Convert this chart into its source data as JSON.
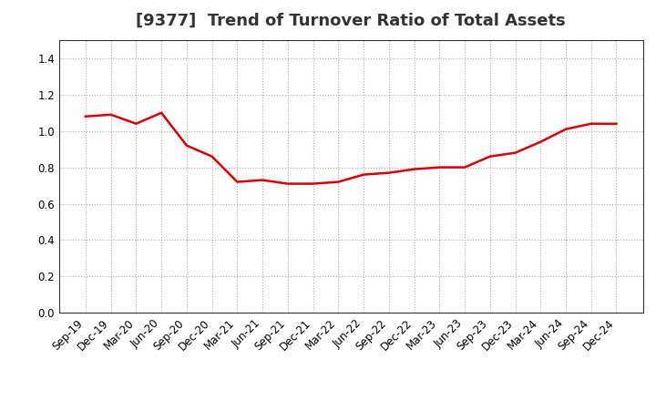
{
  "title": "[9377]  Trend of Turnover Ratio of Total Assets",
  "x_labels": [
    "Sep-19",
    "Dec-19",
    "Mar-20",
    "Jun-20",
    "Sep-20",
    "Dec-20",
    "Mar-21",
    "Jun-21",
    "Sep-21",
    "Dec-21",
    "Mar-22",
    "Jun-22",
    "Sep-22",
    "Dec-22",
    "Mar-23",
    "Jun-23",
    "Sep-23",
    "Dec-23",
    "Mar-24",
    "Jun-24",
    "Sep-24",
    "Dec-24"
  ],
  "y_values": [
    1.08,
    1.09,
    1.04,
    1.1,
    0.92,
    0.86,
    0.72,
    0.73,
    0.71,
    0.71,
    0.72,
    0.76,
    0.77,
    0.79,
    0.8,
    0.8,
    0.86,
    0.88,
    0.94,
    1.01,
    1.04,
    1.04
  ],
  "line_color": "#dd0000",
  "ylim": [
    0.0,
    1.5
  ],
  "yticks": [
    0.0,
    0.2,
    0.4,
    0.6,
    0.8,
    1.0,
    1.2,
    1.4
  ],
  "background_color": "#ffffff",
  "grid_color": "#aaaaaa",
  "title_fontsize": 13,
  "tick_fontsize": 8.5,
  "line_width": 1.8
}
